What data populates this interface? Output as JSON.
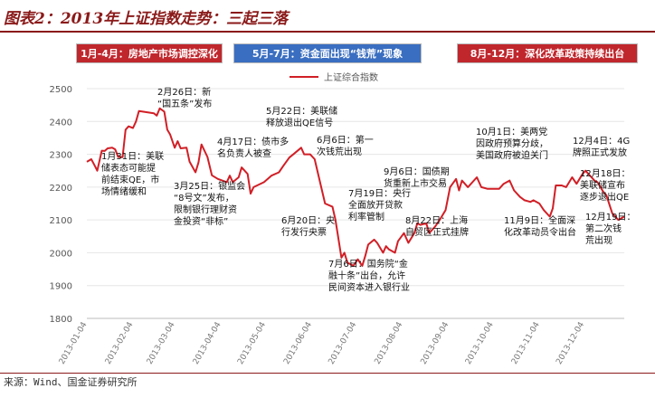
{
  "title": "图表2：2013年上证指数走势：三起三落",
  "phases": [
    "1月-4月：房地产市场调控深化",
    "5月-7月：资金面出现“钱荒”现象",
    "8月-12月：深化改革政策持续出台"
  ],
  "source": "来源：Wind、国金证券研究所",
  "colors": {
    "line": "#d11f26",
    "phase_red": "#c0272d",
    "phase_blue": "#3a6ec0",
    "grid": "#e6e6e6"
  },
  "chart_data": {
    "type": "line",
    "title": "",
    "legend": [
      "上证综合指数"
    ],
    "legend_position": "top-right",
    "ylim": [
      1800,
      2500
    ],
    "yticks": [
      "1800",
      "1900",
      "2000",
      "2100",
      "2200",
      "2300",
      "2400",
      "2500"
    ],
    "xticks": [
      "2013-01-04",
      "2013-02-04",
      "2013-03-04",
      "2013-04-04",
      "2013-05-04",
      "2013-06-04",
      "2013-07-04",
      "2013-08-04",
      "2013-09-04",
      "2013-10-04",
      "2013-11-04",
      "2013-12-04"
    ],
    "grid": true,
    "series": [
      {
        "name": "上证综合指数",
        "x": [
          "2013-01-04",
          "2013-01-07",
          "2013-01-09",
          "2013-01-11",
          "2013-01-14",
          "2013-01-16",
          "2013-01-18",
          "2013-01-21",
          "2013-01-23",
          "2013-01-25",
          "2013-01-28",
          "2013-01-30",
          "2013-02-01",
          "2013-02-04",
          "2013-02-06",
          "2013-02-08",
          "2013-02-18",
          "2013-02-20",
          "2013-02-22",
          "2013-02-25",
          "2013-02-27",
          "2013-03-01",
          "2013-03-04",
          "2013-03-06",
          "2013-03-08",
          "2013-03-12",
          "2013-03-14",
          "2013-03-18",
          "2013-03-20",
          "2013-03-22",
          "2013-03-26",
          "2013-03-29",
          "2013-04-02",
          "2013-04-08",
          "2013-04-10",
          "2013-04-12",
          "2013-04-16",
          "2013-04-18",
          "2013-04-22",
          "2013-04-24",
          "2013-04-26",
          "2013-05-03",
          "2013-05-08",
          "2013-05-13",
          "2013-05-16",
          "2013-05-20",
          "2013-05-23",
          "2013-05-28",
          "2013-05-30",
          "2013-06-03",
          "2013-06-06",
          "2013-06-13",
          "2013-06-18",
          "2013-06-20",
          "2013-06-24",
          "2013-06-26",
          "2013-06-28",
          "2013-07-02",
          "2013-07-05",
          "2013-07-08",
          "2013-07-10",
          "2013-07-12",
          "2013-07-16",
          "2013-07-18",
          "2013-07-22",
          "2013-07-24",
          "2013-07-26",
          "2013-07-30",
          "2013-08-01",
          "2013-08-05",
          "2013-08-08",
          "2013-08-12",
          "2013-08-14",
          "2013-08-16",
          "2013-08-20",
          "2013-08-22",
          "2013-08-26",
          "2013-08-29",
          "2013-09-02",
          "2013-09-05",
          "2013-09-09",
          "2013-09-11",
          "2013-09-13",
          "2013-09-17",
          "2013-09-23",
          "2013-09-26",
          "2013-09-30",
          "2013-10-08",
          "2013-10-11",
          "2013-10-15",
          "2013-10-18",
          "2013-10-22",
          "2013-10-25",
          "2013-10-29",
          "2013-10-31",
          "2013-11-04",
          "2013-11-07",
          "2013-11-11",
          "2013-11-13",
          "2013-11-15",
          "2013-11-19",
          "2013-11-22",
          "2013-11-26",
          "2013-11-29",
          "2013-12-03",
          "2013-12-05",
          "2013-12-09",
          "2013-12-11",
          "2013-12-13",
          "2013-12-17",
          "2013-12-19",
          "2013-12-23",
          "2013-12-25",
          "2013-12-27",
          "2013-12-31"
        ],
        "values": [
          2277,
          2285,
          2268,
          2250,
          2311,
          2310,
          2318,
          2320,
          2315,
          2292,
          2291,
          2375,
          2385,
          2380,
          2400,
          2432,
          2425,
          2418,
          2440,
          2430,
          2375,
          2360,
          2320,
          2340,
          2318,
          2320,
          2278,
          2245,
          2275,
          2330,
          2292,
          2236,
          2225,
          2215,
          2235,
          2215,
          2230,
          2260,
          2240,
          2180,
          2200,
          2215,
          2235,
          2245,
          2265,
          2290,
          2301,
          2320,
          2300,
          2300,
          2285,
          2150,
          2140,
          2100,
          1985,
          2000,
          1970,
          1960,
          1980,
          1960,
          1990,
          2025,
          2040,
          2030,
          2000,
          2020,
          2010,
          2000,
          2035,
          2060,
          2030,
          2060,
          2090,
          2085,
          2090,
          2060,
          2080,
          2100,
          2130,
          2200,
          2225,
          2190,
          2220,
          2200,
          2230,
          2200,
          2195,
          2195,
          2210,
          2220,
          2190,
          2170,
          2160,
          2155,
          2160,
          2150,
          2130,
          2110,
          2135,
          2205,
          2205,
          2200,
          2230,
          2210,
          2240,
          2250,
          2230,
          2220,
          2215,
          2185,
          2175,
          2120,
          2110,
          2100,
          2110
        ]
      }
    ],
    "annotations": [
      {
        "date": "2013-02-26",
        "lines": [
          "2月26日：新",
          "“国五条”发布"
        ]
      },
      {
        "date": "2013-01-31",
        "lines": [
          "1月31日：美联",
          "储表态可能提",
          "前结束QE，市",
          "场情绪缓和"
        ]
      },
      {
        "date": "2013-03-25",
        "lines": [
          "3月25日：银监会",
          "“8号文”发布，",
          "限制银行理财资",
          "金投资“非标”"
        ]
      },
      {
        "date": "2013-04-17",
        "lines": [
          "4月17日：债市多",
          "名负责人被查"
        ]
      },
      {
        "date": "2013-05-22",
        "lines": [
          "5月22日：美联储",
          "释放退出QE信号"
        ]
      },
      {
        "date": "2013-06-06",
        "lines": [
          "6月6日：第一",
          "次钱荒出现"
        ]
      },
      {
        "date": "2013-06-20",
        "lines": [
          "6月20日：央",
          "行发行央票"
        ]
      },
      {
        "date": "2013-07-19",
        "lines": [
          "7月19日：央行",
          "全面放开贷款",
          "利率管制"
        ]
      },
      {
        "date": "2013-07-06",
        "lines": [
          "7月6日：国务院“金",
          "融十条”出台，允许",
          "民间资本进入银行业"
        ]
      },
      {
        "date": "2013-09-06",
        "lines": [
          "9月6日：国债期",
          "货重新上市交易"
        ]
      },
      {
        "date": "2013-08-22",
        "lines": [
          "8月22日：上海",
          "自贸区正式挂牌"
        ]
      },
      {
        "date": "2013-10-01",
        "lines": [
          "10月1日：美两党",
          "因政府预算分歧，",
          "美国政府被迫关门"
        ]
      },
      {
        "date": "2013-11-09",
        "lines": [
          "11月9日：全面深",
          "化改革动员令出台"
        ]
      },
      {
        "date": "2013-12-04",
        "lines": [
          "12月4日：4G",
          "牌照正式发放"
        ]
      },
      {
        "date": "2013-12-18",
        "lines": [
          "12月18日：",
          "美联储宣布",
          "逐步退出QE"
        ]
      },
      {
        "date": "2013-12-19",
        "lines": [
          "12月19日：",
          "第二次钱",
          "荒出现"
        ]
      }
    ]
  }
}
